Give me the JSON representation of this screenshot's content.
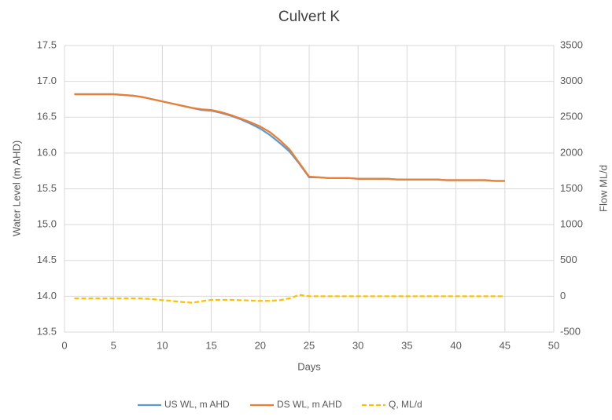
{
  "chart_data": {
    "type": "line",
    "title": "Culvert K",
    "x_label": "Days",
    "y_label": "Water Level (m AHD)",
    "y2_label": "Flow ML/d",
    "x": [
      1,
      2,
      3,
      4,
      5,
      6,
      7,
      8,
      9,
      10,
      11,
      12,
      13,
      14,
      15,
      16,
      17,
      18,
      19,
      20,
      21,
      22,
      23,
      24,
      25,
      26,
      27,
      28,
      29,
      30,
      31,
      32,
      33,
      34,
      35,
      36,
      37,
      38,
      39,
      40,
      41,
      42,
      43,
      44,
      45
    ],
    "series": [
      {
        "name": "US WL, m AHD",
        "color": "#5b9bd5",
        "axis": "y",
        "values": [
          16.82,
          16.82,
          16.82,
          16.82,
          16.82,
          16.81,
          16.8,
          16.78,
          16.75,
          16.72,
          16.69,
          16.66,
          16.63,
          16.6,
          16.59,
          16.56,
          16.52,
          16.47,
          16.41,
          16.34,
          16.25,
          16.14,
          16.02,
          15.85,
          15.66,
          15.66,
          15.65,
          15.65,
          15.65,
          15.64,
          15.64,
          15.64,
          15.64,
          15.63,
          15.63,
          15.63,
          15.63,
          15.63,
          15.62,
          15.62,
          15.62,
          15.62,
          15.62,
          15.61,
          15.61
        ]
      },
      {
        "name": "DS WL, m AHD",
        "color": "#ed7d31",
        "axis": "y",
        "values": [
          16.82,
          16.82,
          16.82,
          16.82,
          16.82,
          16.81,
          16.8,
          16.78,
          16.75,
          16.72,
          16.69,
          16.66,
          16.63,
          16.61,
          16.6,
          16.57,
          16.53,
          16.48,
          16.43,
          16.37,
          16.29,
          16.18,
          16.05,
          15.86,
          15.67,
          15.66,
          15.65,
          15.65,
          15.65,
          15.64,
          15.64,
          15.64,
          15.64,
          15.63,
          15.63,
          15.63,
          15.63,
          15.63,
          15.62,
          15.62,
          15.62,
          15.62,
          15.62,
          15.61,
          15.61
        ]
      },
      {
        "name": "Q, ML/d",
        "color": "#ffc000",
        "axis": "y2",
        "dashed": true,
        "values": [
          -30,
          -30,
          -30,
          -30,
          -30,
          -30,
          -30,
          -30,
          -40,
          -55,
          -65,
          -80,
          -90,
          -70,
          -50,
          -50,
          -50,
          -55,
          -60,
          -65,
          -65,
          -55,
          -30,
          20,
          0,
          0,
          0,
          0,
          0,
          0,
          0,
          0,
          0,
          0,
          0,
          0,
          0,
          0,
          0,
          0,
          0,
          0,
          0,
          0,
          0
        ]
      }
    ],
    "xlim": [
      0,
      50
    ],
    "xticks": [
      0,
      5,
      10,
      15,
      20,
      25,
      30,
      35,
      40,
      45,
      50
    ],
    "ylim": [
      13.5,
      17.5
    ],
    "yticks": [
      13.5,
      {
        "value": 14,
        "label": "14.0"
      },
      14.5,
      {
        "value": 15,
        "label": "15.0"
      },
      15.5,
      {
        "value": 16,
        "label": "16.0"
      },
      16.5,
      {
        "value": 17,
        "label": "17.0"
      },
      17.5
    ],
    "y2lim": [
      -500,
      3500
    ],
    "y2ticks": [
      -500,
      0,
      500,
      1000,
      1500,
      2000,
      2500,
      3000,
      3500
    ],
    "grid": true,
    "legend": "bottom"
  }
}
